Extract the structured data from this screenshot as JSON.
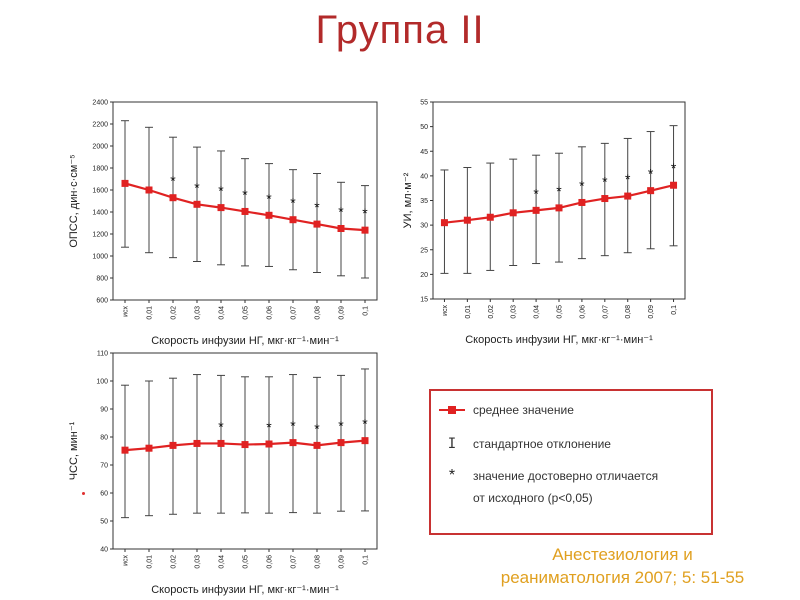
{
  "slide": {
    "title": "Группа II",
    "citation_line1": "Анестезиология и",
    "citation_line2": "реаниматология 2007; 5: 51-55"
  },
  "legend": {
    "mean_label": "среднее значение",
    "sd_label": "стандартное отклонение",
    "sd_symbol": "I",
    "star_symbol": "*",
    "sig_line1": "значение достоверно отличается",
    "sig_line2": "от исходного (p<0,05)"
  },
  "colors": {
    "title": "#b22a2a",
    "series": "#e02222",
    "legend_border": "#c83232",
    "citation": "#e0a020"
  },
  "chart_data": [
    {
      "type": "line",
      "ylabel": "ОПСС, дин·с·см⁻⁵",
      "xlabel": "Скорость инфузии НГ, мкг·кг⁻¹·мин⁻¹",
      "x": [
        "исх",
        "0,01",
        "0,02",
        "0,03",
        "0,04",
        "0,05",
        "0,06",
        "0,07",
        "0,08",
        "0,09",
        "0,1"
      ],
      "ylim": [
        600,
        2400
      ],
      "yticks": [
        "600",
        "800",
        "1000",
        "1200",
        "1400",
        "1600",
        "1800",
        "2000",
        "2200",
        "2400"
      ],
      "mean": [
        1660,
        1600,
        1530,
        1470,
        1440,
        1405,
        1370,
        1330,
        1290,
        1250,
        1235
      ],
      "sd_upper": [
        2230,
        2170,
        2080,
        1990,
        1955,
        1885,
        1840,
        1785,
        1750,
        1670,
        1640
      ],
      "sd_lower": [
        1080,
        1030,
        985,
        950,
        920,
        910,
        905,
        875,
        850,
        820,
        800
      ],
      "significant": [
        false,
        false,
        true,
        true,
        true,
        true,
        true,
        true,
        true,
        true,
        true
      ]
    },
    {
      "type": "line",
      "ylabel": "УИ, мл·м⁻²",
      "xlabel": "Скорость инфузии НГ, мкг·кг⁻¹·мин⁻¹",
      "x": [
        "исх",
        "0,01",
        "0,02",
        "0,03",
        "0,04",
        "0,05",
        "0,06",
        "0,07",
        "0,08",
        "0,09",
        "0,1"
      ],
      "ylim": [
        15,
        55
      ],
      "yticks": [
        "15",
        "20",
        "25",
        "30",
        "35",
        "40",
        "45",
        "50",
        "55"
      ],
      "mean": [
        30.5,
        31.0,
        31.6,
        32.5,
        33.0,
        33.5,
        34.6,
        35.4,
        35.9,
        37.0,
        38.1
      ],
      "sd_upper": [
        41.2,
        41.7,
        42.6,
        43.4,
        44.2,
        44.6,
        45.9,
        46.6,
        47.6,
        49.0,
        50.2
      ],
      "sd_lower": [
        20.2,
        20.2,
        20.8,
        21.8,
        22.2,
        22.5,
        23.2,
        23.8,
        24.4,
        25.2,
        25.8
      ],
      "significant": [
        false,
        false,
        false,
        false,
        true,
        true,
        true,
        true,
        true,
        true,
        true
      ]
    },
    {
      "type": "line",
      "ylabel": "ЧСС, мин⁻¹",
      "xlabel": "Скорость инфузии НГ, мкг·кг⁻¹·мин⁻¹",
      "x": [
        "исх",
        "0,01",
        "0,02",
        "0,03",
        "0,04",
        "0,05",
        "0,06",
        "0,07",
        "0,08",
        "0,09",
        "0,1"
      ],
      "ylim": [
        40,
        110
      ],
      "yticks": [
        "40",
        "50",
        "60",
        "70",
        "80",
        "90",
        "100",
        "110"
      ],
      "mean": [
        75.3,
        76.0,
        77.0,
        77.7,
        77.7,
        77.3,
        77.5,
        78.0,
        77.0,
        78.0,
        78.7
      ],
      "sd_upper": [
        98.5,
        100.0,
        101.0,
        102.3,
        102.0,
        101.5,
        101.5,
        102.3,
        101.3,
        102.0,
        104.3
      ],
      "sd_lower": [
        51.2,
        51.9,
        52.4,
        52.8,
        52.8,
        52.9,
        52.8,
        53.0,
        52.8,
        53.5,
        53.6
      ],
      "significant": [
        false,
        false,
        false,
        false,
        true,
        false,
        true,
        true,
        true,
        true,
        true
      ]
    }
  ]
}
